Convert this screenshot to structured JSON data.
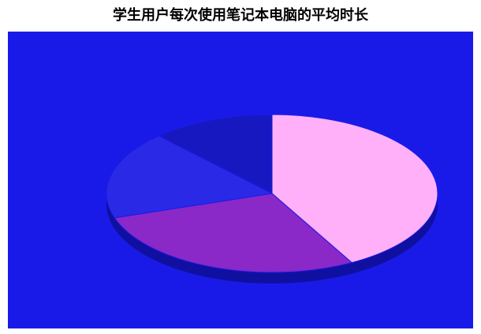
{
  "chart_data": {
    "type": "pie",
    "title": "学生用户每次使用笔记本电脑的平均时长",
    "values": [
      42,
      28,
      18,
      12
    ],
    "colors": [
      "#ffb0f8",
      "#8a28c8",
      "#2a2ae6",
      "#1818c0"
    ],
    "background": "#1a1ae8"
  }
}
